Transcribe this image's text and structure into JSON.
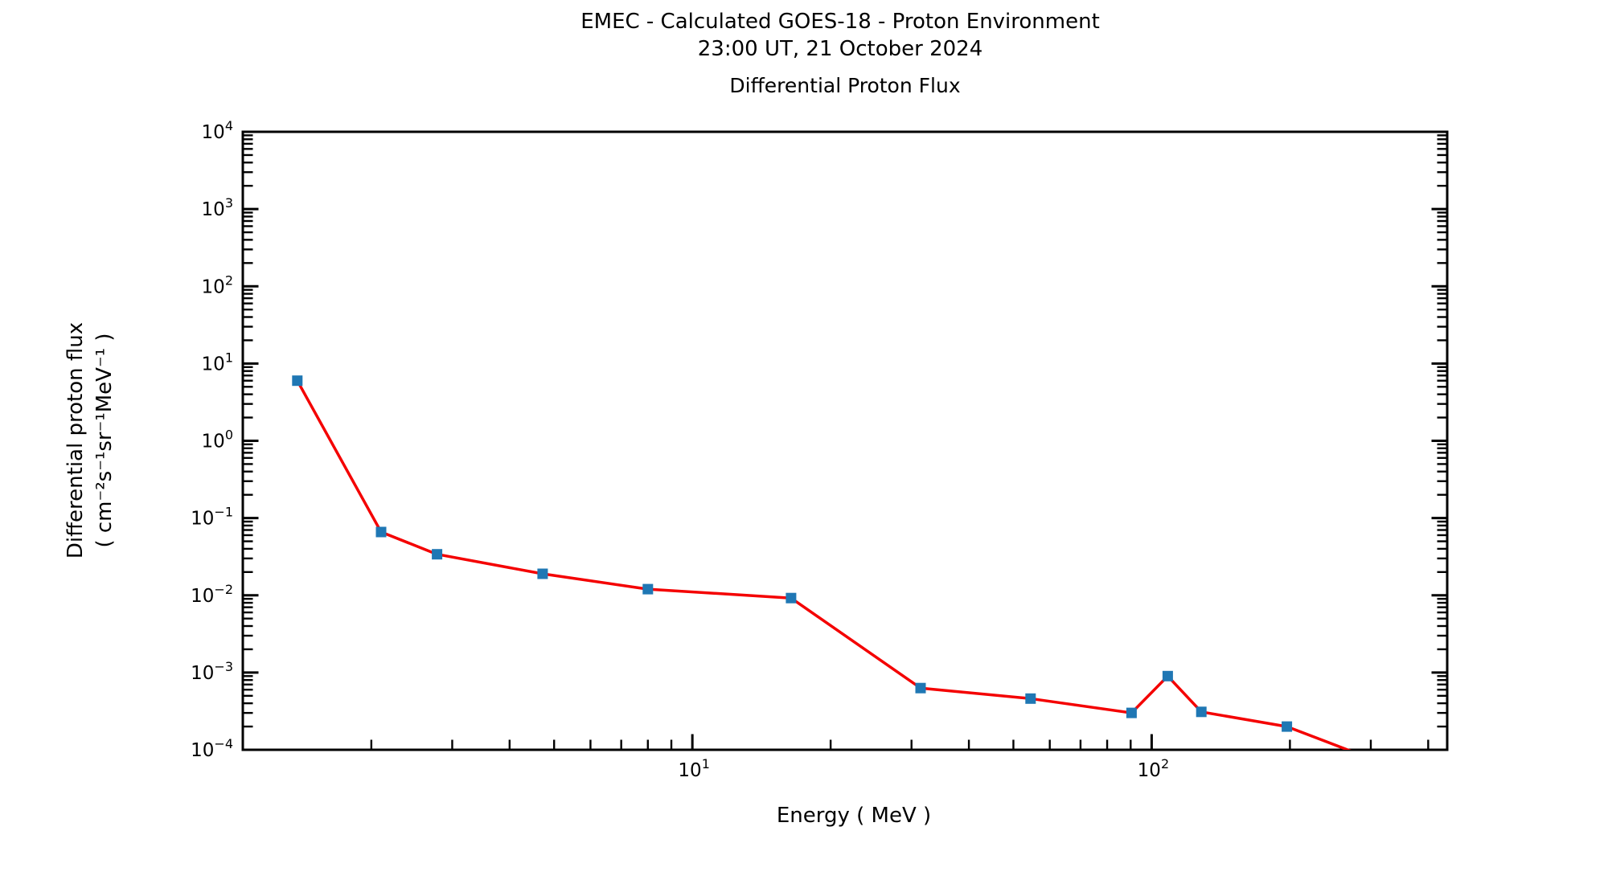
{
  "figure": {
    "suptitle_line1": "EMEC - Calculated GOES-18 - Proton Environment",
    "suptitle_line2": "23:00 UT, 21 October 2024"
  },
  "chart_data": {
    "type": "line",
    "title": "Differential Proton Flux",
    "xlabel": "Energy ( MeV )",
    "ylabel_line1": "Differential proton flux",
    "ylabel_line2": "( cm⁻²s⁻¹sr⁻¹MeV⁻¹ )",
    "xscale": "log",
    "yscale": "log",
    "xlim": [
      1.05,
      440
    ],
    "ylim": [
      0.0001,
      10000.0
    ],
    "x_major_ticks": [
      10,
      100
    ],
    "y_major_tick_exponents": [
      -4,
      -3,
      -2,
      -1,
      0,
      1,
      2,
      3,
      4
    ],
    "minor_ticks": "2-9 per decade, inward, on left/right/bottom",
    "grid": false,
    "legend": null,
    "series": [
      {
        "name": "differential proton flux",
        "x": [
          1.38,
          2.1,
          2.78,
          4.72,
          8.0,
          16.4,
          31.4,
          54.5,
          90.4,
          108.4,
          128.3,
          197,
          334
        ],
        "y": [
          6.0,
          0.066,
          0.034,
          0.019,
          0.012,
          0.0092,
          0.00063,
          0.00046,
          0.0003,
          0.0009,
          0.00031,
          0.0002,
          6e-05
        ],
        "line_color": "#f40000",
        "line_width": 3.5,
        "marker": "square",
        "marker_color": "#1f77b4",
        "marker_size": 13
      }
    ]
  }
}
